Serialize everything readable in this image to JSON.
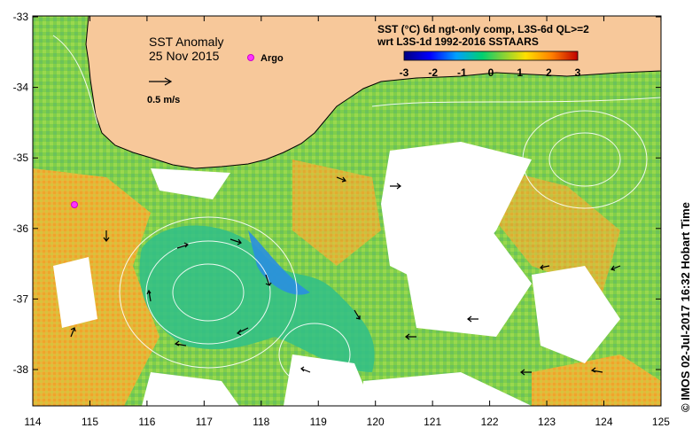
{
  "map": {
    "title": "SST Anomaly",
    "date": "25 Nov 2015",
    "argo_label": "Argo",
    "scale_label": "0.5 m/s",
    "colorbar_title_line1": "SST (°C) 6d ngt-only comp, L3S-6d QL>=2",
    "colorbar_title_line2": "wrt L3S-1d 1992-2016 SSTAARS",
    "colorbar_ticks": [
      "-3",
      "-2",
      "-1",
      "0",
      "1",
      "2",
      "3"
    ],
    "lat_ticks": [
      "-33",
      "-34",
      "-35",
      "-36",
      "-37",
      "-38"
    ],
    "lon_ticks": [
      "114",
      "115",
      "116",
      "117",
      "118",
      "119",
      "120",
      "121",
      "122",
      "123",
      "124",
      "125"
    ],
    "credit": "© IMOS 02-Jul-2017 16:32 Hobart Time",
    "colors": {
      "land": "#f7c89a",
      "argo": "#ff33ff",
      "anomaly_low": "#0000ff",
      "anomaly_mid": "#33cc33",
      "anomaly_high": "#cc3300"
    }
  }
}
